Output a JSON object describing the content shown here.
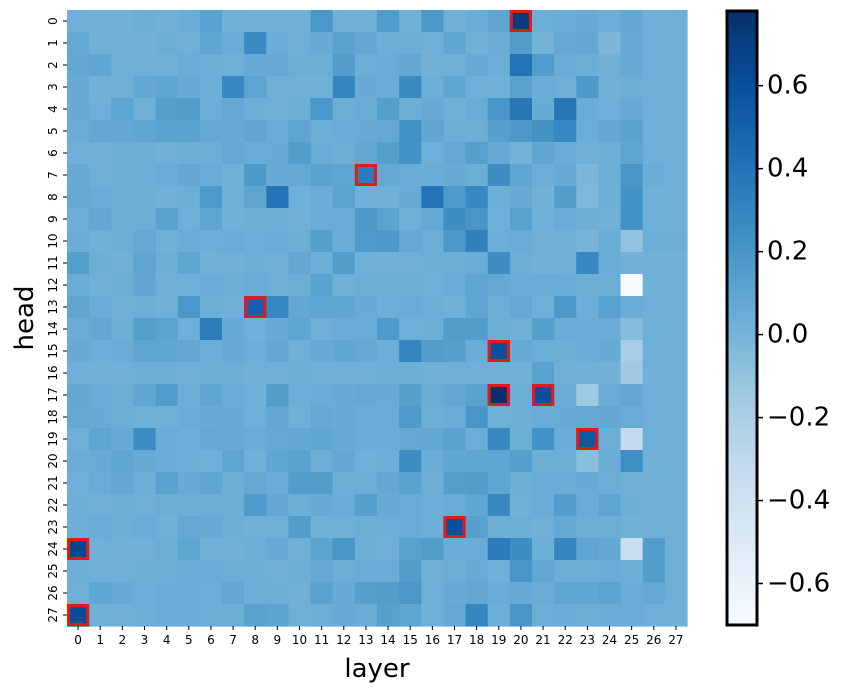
{
  "chart_data": {
    "type": "heatmap",
    "xlabel": "layer",
    "ylabel": "head",
    "x_ticks": [
      "0",
      "1",
      "2",
      "3",
      "4",
      "5",
      "6",
      "7",
      "8",
      "9",
      "10",
      "11",
      "12",
      "13",
      "14",
      "15",
      "16",
      "17",
      "18",
      "19",
      "20",
      "21",
      "22",
      "23",
      "24",
      "25",
      "26",
      "27"
    ],
    "y_ticks": [
      "0",
      "1",
      "2",
      "3",
      "4",
      "5",
      "6",
      "7",
      "8",
      "9",
      "10",
      "11",
      "12",
      "13",
      "14",
      "15",
      "16",
      "17",
      "18",
      "19",
      "20",
      "21",
      "22",
      "23",
      "24",
      "25",
      "26",
      "27"
    ],
    "colorbar": {
      "min": -0.7,
      "max": 0.78,
      "ticks": [
        "0.6",
        "0.4",
        "0.2",
        "0.0",
        "−0.2",
        "−0.4",
        "−0.6"
      ],
      "tick_values": [
        0.6,
        0.4,
        0.2,
        0.0,
        -0.2,
        -0.4,
        -0.6
      ]
    },
    "colorscale": [
      "#f7fbff",
      "#deebf7",
      "#c6dbef",
      "#9ecae1",
      "#6baed6",
      "#4292c6",
      "#2171b5",
      "#08519c",
      "#08306b"
    ],
    "highlight_color": "#e31a1c",
    "baseline": 0.0,
    "values": [
      [
        0.03,
        0.02,
        0.02,
        0.04,
        0.03,
        0.05,
        0.12,
        0.03,
        0.02,
        0.02,
        0.02,
        0.19,
        0.02,
        0.02,
        0.16,
        0.02,
        0.18,
        0.02,
        0.05,
        0.09,
        0.72,
        0.04,
        0.05,
        0.06,
        0.04,
        0.08,
        0.03,
        0.03
      ],
      [
        0.07,
        0.02,
        0.03,
        0.02,
        0.04,
        0.03,
        0.1,
        0.05,
        0.26,
        0.05,
        0.03,
        0.06,
        0.12,
        0.08,
        0.04,
        0.04,
        0.03,
        0.09,
        0.02,
        0.05,
        0.15,
        0.01,
        0.07,
        0.08,
        -0.02,
        0.06,
        0.03,
        0.03
      ],
      [
        0.08,
        0.09,
        0.03,
        0.03,
        0.02,
        0.05,
        0.04,
        0.03,
        0.06,
        0.07,
        0.04,
        0.04,
        0.15,
        0.04,
        0.05,
        0.08,
        0.02,
        0.03,
        0.06,
        0.04,
        0.4,
        0.15,
        0.05,
        0.04,
        0.02,
        0.06,
        0.03,
        0.03
      ],
      [
        0.06,
        0.02,
        0.02,
        0.08,
        0.09,
        0.06,
        0.04,
        0.28,
        0.1,
        0.03,
        0.03,
        0.03,
        0.3,
        0.06,
        0.05,
        0.27,
        0.04,
        0.09,
        0.03,
        0.03,
        0.12,
        0.05,
        0.03,
        0.18,
        0.02,
        0.04,
        0.03,
        0.03
      ],
      [
        0.06,
        0.03,
        0.1,
        0.03,
        0.14,
        0.15,
        0.04,
        0.07,
        0.04,
        0.03,
        0.04,
        0.19,
        0.04,
        0.05,
        0.14,
        0.04,
        0.06,
        0.02,
        0.05,
        0.2,
        0.38,
        0.06,
        0.38,
        0.05,
        0.03,
        0.06,
        0.03,
        0.03
      ],
      [
        0.05,
        0.08,
        0.08,
        0.09,
        0.12,
        0.12,
        0.07,
        0.06,
        0.09,
        0.05,
        0.1,
        0.04,
        0.05,
        0.06,
        0.07,
        0.23,
        0.09,
        0.04,
        0.04,
        0.13,
        0.18,
        0.22,
        0.28,
        0.04,
        0.08,
        0.12,
        0.03,
        0.03
      ],
      [
        0.03,
        0.03,
        0.04,
        0.04,
        0.03,
        0.04,
        0.04,
        0.07,
        0.05,
        0.06,
        0.15,
        0.05,
        0.04,
        0.08,
        0.14,
        0.22,
        0.03,
        0.07,
        0.13,
        0.06,
        0.01,
        0.09,
        0.05,
        0.03,
        0.04,
        0.1,
        0.03,
        0.03
      ],
      [
        0.06,
        0.03,
        0.04,
        0.04,
        0.05,
        0.08,
        0.05,
        0.03,
        0.18,
        0.06,
        0.07,
        0.12,
        0.1,
        0.35,
        0.07,
        0.05,
        0.05,
        0.06,
        0.04,
        0.25,
        0.09,
        0.04,
        0.06,
        -0.02,
        0.04,
        0.2,
        0.05,
        0.03
      ],
      [
        0.07,
        0.05,
        0.04,
        0.04,
        0.03,
        0.04,
        0.17,
        0.03,
        0.1,
        0.4,
        0.03,
        0.05,
        0.11,
        0.03,
        0.03,
        0.06,
        0.4,
        0.17,
        0.28,
        0.04,
        0.06,
        0.02,
        0.15,
        -0.03,
        0.04,
        0.22,
        0.03,
        0.03
      ],
      [
        0.04,
        0.08,
        0.04,
        0.04,
        0.12,
        0.03,
        0.1,
        0.03,
        0.04,
        0.04,
        0.03,
        0.05,
        0.05,
        0.18,
        0.11,
        0.03,
        0.07,
        0.25,
        0.2,
        0.03,
        0.12,
        0.03,
        0.05,
        0.04,
        0.03,
        0.22,
        0.03,
        0.03
      ],
      [
        0.05,
        0.03,
        0.04,
        0.07,
        0.03,
        0.05,
        0.04,
        0.05,
        0.04,
        0.05,
        0.04,
        0.13,
        0.05,
        0.17,
        0.18,
        0.07,
        0.04,
        0.18,
        0.32,
        0.04,
        0.05,
        0.02,
        0.03,
        0.0,
        0.05,
        -0.1,
        0.04,
        0.04
      ],
      [
        0.14,
        0.04,
        0.03,
        0.1,
        0.04,
        0.1,
        0.03,
        0.03,
        0.04,
        0.03,
        0.08,
        0.04,
        0.15,
        0.03,
        0.03,
        0.03,
        0.04,
        0.04,
        0.05,
        0.25,
        0.04,
        0.02,
        0.03,
        0.28,
        0.05,
        0.02,
        0.03,
        0.03
      ],
      [
        0.05,
        0.03,
        0.04,
        0.09,
        0.03,
        0.03,
        0.05,
        0.04,
        0.05,
        0.03,
        0.04,
        0.12,
        0.03,
        0.04,
        0.04,
        0.04,
        0.03,
        0.05,
        0.1,
        0.07,
        0.05,
        0.05,
        0.05,
        0.04,
        0.04,
        -0.7,
        0.03,
        0.03
      ],
      [
        0.1,
        0.05,
        0.03,
        0.04,
        0.03,
        0.19,
        0.04,
        0.03,
        0.5,
        0.28,
        0.08,
        0.1,
        0.1,
        0.06,
        0.04,
        0.05,
        0.04,
        0.02,
        0.09,
        0.04,
        0.07,
        0.03,
        0.18,
        0.04,
        0.12,
        0.05,
        0.03,
        0.03
      ],
      [
        0.05,
        0.08,
        0.04,
        0.14,
        0.11,
        0.03,
        0.34,
        0.06,
        0.03,
        0.06,
        0.1,
        0.03,
        0.05,
        0.05,
        0.17,
        0.03,
        0.04,
        0.15,
        0.15,
        0.04,
        0.03,
        0.14,
        0.05,
        0.05,
        0.05,
        -0.05,
        0.03,
        0.03
      ],
      [
        0.06,
        0.04,
        0.05,
        0.1,
        0.09,
        0.08,
        0.04,
        0.06,
        0.04,
        0.08,
        0.03,
        0.06,
        0.09,
        0.07,
        0.04,
        0.3,
        0.15,
        0.14,
        0.05,
        0.6,
        0.06,
        0.04,
        0.04,
        0.05,
        0.06,
        -0.18,
        0.03,
        0.03
      ],
      [
        0.03,
        0.03,
        0.03,
        0.04,
        0.04,
        0.03,
        0.04,
        0.04,
        0.03,
        0.03,
        0.04,
        0.03,
        0.03,
        0.03,
        0.04,
        0.04,
        0.03,
        0.03,
        0.03,
        0.03,
        0.03,
        0.12,
        0.03,
        0.03,
        0.02,
        -0.15,
        0.03,
        0.03
      ],
      [
        0.08,
        0.05,
        0.04,
        0.09,
        0.16,
        0.04,
        0.1,
        0.05,
        0.03,
        0.15,
        0.04,
        0.05,
        0.06,
        0.07,
        0.06,
        0.13,
        0.05,
        0.08,
        0.12,
        0.78,
        0.04,
        0.6,
        0.05,
        -0.14,
        0.05,
        0.08,
        0.03,
        0.03
      ],
      [
        0.07,
        0.06,
        0.04,
        0.03,
        0.03,
        0.05,
        0.06,
        0.06,
        0.03,
        0.08,
        0.03,
        0.07,
        0.06,
        0.05,
        0.05,
        0.17,
        0.04,
        0.05,
        0.2,
        0.03,
        0.04,
        0.05,
        0.06,
        0.07,
        0.08,
        0.05,
        0.03,
        0.03
      ],
      [
        0.03,
        0.1,
        0.06,
        0.25,
        0.05,
        0.04,
        0.07,
        0.06,
        0.05,
        0.07,
        0.08,
        0.09,
        0.06,
        0.05,
        0.05,
        0.07,
        0.08,
        0.12,
        0.04,
        0.28,
        0.04,
        0.22,
        0.05,
        0.55,
        0.04,
        -0.32,
        0.03,
        0.03
      ],
      [
        0.05,
        0.06,
        0.09,
        0.06,
        0.05,
        0.04,
        0.03,
        0.1,
        0.03,
        0.09,
        0.12,
        0.04,
        0.08,
        0.03,
        0.04,
        0.25,
        0.05,
        0.09,
        0.1,
        0.09,
        0.14,
        0.04,
        0.04,
        -0.07,
        0.05,
        0.24,
        0.03,
        0.03
      ],
      [
        0.03,
        0.05,
        0.08,
        0.04,
        0.12,
        0.06,
        0.1,
        0.04,
        0.07,
        0.05,
        0.15,
        0.15,
        0.04,
        0.04,
        0.08,
        0.12,
        0.04,
        0.14,
        0.15,
        0.1,
        0.04,
        0.05,
        0.05,
        0.06,
        0.04,
        0.03,
        0.03,
        0.03
      ],
      [
        0.04,
        0.03,
        0.04,
        0.03,
        0.04,
        0.04,
        0.04,
        0.04,
        0.17,
        0.08,
        0.04,
        0.06,
        0.05,
        0.13,
        0.06,
        0.05,
        0.04,
        0.05,
        0.09,
        0.28,
        0.03,
        0.05,
        0.15,
        0.05,
        0.1,
        0.04,
        0.03,
        0.03
      ],
      [
        0.04,
        0.05,
        0.04,
        0.05,
        0.03,
        0.07,
        0.06,
        0.04,
        0.03,
        0.03,
        0.15,
        0.03,
        0.03,
        0.04,
        0.04,
        0.05,
        0.04,
        0.6,
        0.13,
        0.04,
        0.04,
        0.03,
        0.07,
        0.04,
        0.04,
        0.03,
        0.03,
        0.03
      ],
      [
        0.65,
        0.03,
        0.03,
        0.03,
        0.04,
        0.1,
        0.03,
        0.03,
        0.04,
        0.06,
        0.03,
        0.11,
        0.2,
        0.04,
        0.03,
        0.12,
        0.15,
        0.05,
        0.05,
        0.35,
        0.25,
        0.04,
        0.3,
        0.1,
        0.08,
        -0.35,
        0.15,
        0.03
      ],
      [
        0.04,
        0.03,
        0.03,
        0.04,
        0.04,
        0.05,
        0.05,
        0.04,
        0.04,
        0.03,
        0.04,
        0.07,
        0.04,
        0.05,
        0.05,
        0.15,
        0.03,
        0.04,
        0.06,
        0.03,
        0.2,
        0.08,
        0.04,
        0.04,
        0.05,
        0.04,
        0.15,
        0.03
      ],
      [
        0.03,
        0.09,
        0.06,
        0.04,
        0.05,
        0.05,
        0.04,
        0.08,
        0.04,
        0.04,
        0.03,
        0.12,
        0.06,
        0.13,
        0.15,
        0.19,
        0.03,
        0.06,
        0.08,
        0.05,
        0.06,
        0.05,
        0.1,
        0.09,
        0.11,
        0.05,
        0.07,
        0.03
      ],
      [
        0.62,
        0.03,
        0.03,
        0.04,
        0.05,
        0.05,
        0.04,
        0.04,
        0.12,
        0.11,
        0.03,
        0.04,
        0.06,
        0.05,
        0.13,
        0.1,
        0.03,
        0.07,
        0.3,
        0.04,
        0.2,
        0.04,
        0.05,
        0.04,
        0.05,
        0.05,
        0.03,
        0.03
      ]
    ],
    "highlighted_cells": [
      {
        "head": 0,
        "layer": 20
      },
      {
        "head": 7,
        "layer": 13
      },
      {
        "head": 13,
        "layer": 8
      },
      {
        "head": 15,
        "layer": 19
      },
      {
        "head": 17,
        "layer": 19
      },
      {
        "head": 17,
        "layer": 21
      },
      {
        "head": 19,
        "layer": 23
      },
      {
        "head": 23,
        "layer": 17
      },
      {
        "head": 24,
        "layer": 0
      },
      {
        "head": 27,
        "layer": 0
      }
    ]
  }
}
